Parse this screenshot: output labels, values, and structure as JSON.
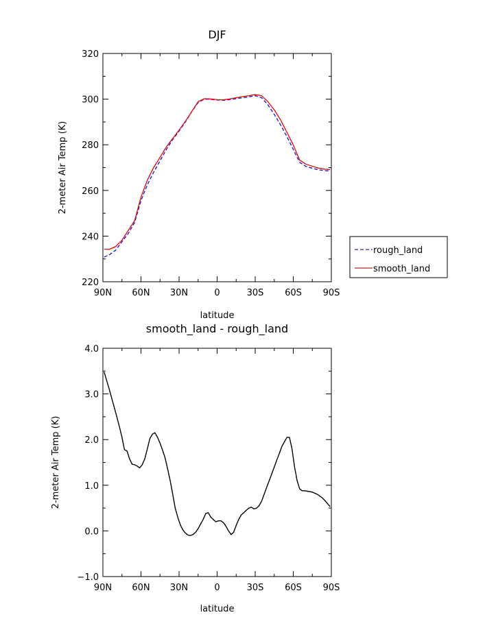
{
  "chart_data": [
    {
      "type": "line",
      "title": "DJF",
      "xlabel": "latitude",
      "ylabel": "2-meter Air Temp (K)",
      "xlim": [
        90,
        -90
      ],
      "ylim": [
        220,
        320
      ],
      "x_ticks": [
        {
          "value": 90,
          "label": "90N"
        },
        {
          "value": 60,
          "label": "60N"
        },
        {
          "value": 30,
          "label": "30N"
        },
        {
          "value": 0,
          "label": "0"
        },
        {
          "value": -30,
          "label": "30S"
        },
        {
          "value": -60,
          "label": "60S"
        },
        {
          "value": -90,
          "label": "90S"
        }
      ],
      "y_ticks": [
        {
          "value": 220,
          "label": "220"
        },
        {
          "value": 240,
          "label": "240"
        },
        {
          "value": 260,
          "label": "260"
        },
        {
          "value": 280,
          "label": "280"
        },
        {
          "value": 300,
          "label": "300"
        },
        {
          "value": 320,
          "label": "320"
        }
      ],
      "legend_position": "right",
      "series": [
        {
          "name": "rough_land",
          "color": "#1f1fcc",
          "dash": "dashed",
          "x": [
            89,
            85,
            80,
            75,
            70,
            65,
            60,
            55,
            50,
            45,
            40,
            35,
            30,
            25,
            20,
            15,
            10,
            5,
            0,
            -5,
            -10,
            -15,
            -20,
            -25,
            -30,
            -35,
            -40,
            -45,
            -50,
            -55,
            -60,
            -65,
            -70,
            -75,
            -80,
            -85,
            -89
          ],
          "y": [
            230.8,
            231.8,
            233.8,
            237.5,
            241.2,
            246.0,
            255.5,
            262.5,
            268.0,
            273.0,
            278.0,
            282.3,
            286.0,
            290.0,
            294.5,
            298.5,
            300.0,
            299.9,
            299.6,
            299.5,
            299.8,
            300.2,
            300.6,
            301.0,
            301.5,
            300.6,
            297.5,
            293.3,
            288.7,
            283.5,
            278.0,
            272.3,
            270.5,
            269.7,
            269.0,
            268.7,
            268.5
          ]
        },
        {
          "name": "smooth_land",
          "color": "#e01414",
          "dash": "solid",
          "x": [
            89,
            85,
            80,
            75,
            70,
            65,
            60,
            55,
            50,
            45,
            40,
            35,
            30,
            25,
            20,
            15,
            10,
            5,
            0,
            -5,
            -10,
            -15,
            -20,
            -25,
            -30,
            -35,
            -40,
            -45,
            -50,
            -55,
            -60,
            -65,
            -70,
            -75,
            -80,
            -85,
            -89
          ],
          "y": [
            234.3,
            234.2,
            235.4,
            238.2,
            242.5,
            246.8,
            257.1,
            264.5,
            270.1,
            274.5,
            279.1,
            282.8,
            286.4,
            290.3,
            294.6,
            298.9,
            300.2,
            300.1,
            299.8,
            299.7,
            300.1,
            300.6,
            301.1,
            301.5,
            302.0,
            301.5,
            298.9,
            295.3,
            290.9,
            285.4,
            279.9,
            273.3,
            271.5,
            270.6,
            269.8,
            269.3,
            269.1
          ]
        }
      ]
    },
    {
      "type": "line",
      "title": "smooth_land - rough_land",
      "xlabel": "latitude",
      "ylabel": "2-meter Air Temp (K)",
      "xlim": [
        90,
        -90
      ],
      "ylim": [
        -1.0,
        4.0
      ],
      "x_ticks": [
        {
          "value": 90,
          "label": "90N"
        },
        {
          "value": 60,
          "label": "60N"
        },
        {
          "value": 30,
          "label": "30N"
        },
        {
          "value": 0,
          "label": "0"
        },
        {
          "value": -30,
          "label": "30S"
        },
        {
          "value": -60,
          "label": "60S"
        },
        {
          "value": -90,
          "label": "90S"
        }
      ],
      "y_ticks": [
        {
          "value": -1.0,
          "label": "-1.0"
        },
        {
          "value": 0.0,
          "label": "0.0"
        },
        {
          "value": 1.0,
          "label": "1.0"
        },
        {
          "value": 2.0,
          "label": "2.0"
        },
        {
          "value": 3.0,
          "label": "3.0"
        },
        {
          "value": 4.0,
          "label": "4.0"
        }
      ],
      "series": [
        {
          "color": "#000000",
          "dash": "solid",
          "x": [
            89,
            85,
            82,
            79,
            77,
            75,
            73,
            71,
            69,
            67,
            65,
            63,
            61,
            59,
            57,
            55,
            53,
            51,
            49,
            47,
            45,
            43,
            41,
            39,
            37,
            35,
            33,
            31,
            29,
            27,
            25,
            23,
            21,
            19,
            17,
            15,
            13,
            11,
            9,
            7,
            5,
            3,
            1,
            -1,
            -3,
            -5,
            -7,
            -9,
            -11,
            -13,
            -15,
            -17,
            -19,
            -21,
            -23,
            -25,
            -27,
            -29,
            -31,
            -33,
            -35,
            -37,
            -39,
            -41,
            -43,
            -45,
            -47,
            -49,
            -51,
            -53,
            -55,
            -57,
            -59,
            -61,
            -63,
            -65,
            -67,
            -69,
            -71,
            -75,
            -79,
            -83,
            -86,
            -89
          ],
          "y": [
            3.48,
            3.1,
            2.8,
            2.5,
            2.28,
            2.05,
            1.78,
            1.75,
            1.58,
            1.46,
            1.45,
            1.42,
            1.38,
            1.45,
            1.58,
            1.8,
            2.02,
            2.12,
            2.15,
            2.05,
            1.92,
            1.77,
            1.6,
            1.36,
            1.1,
            0.8,
            0.5,
            0.3,
            0.13,
            0.02,
            -0.05,
            -0.09,
            -0.1,
            -0.08,
            -0.03,
            0.05,
            0.15,
            0.25,
            0.38,
            0.4,
            0.3,
            0.25,
            0.2,
            0.22,
            0.22,
            0.18,
            0.1,
            0.0,
            -0.08,
            -0.03,
            0.12,
            0.25,
            0.35,
            0.4,
            0.45,
            0.5,
            0.52,
            0.48,
            0.5,
            0.55,
            0.65,
            0.8,
            0.95,
            1.1,
            1.25,
            1.4,
            1.55,
            1.7,
            1.85,
            1.95,
            2.05,
            2.05,
            1.8,
            1.4,
            1.1,
            0.92,
            0.88,
            0.88,
            0.87,
            0.85,
            0.8,
            0.72,
            0.63,
            0.53
          ]
        }
      ]
    }
  ]
}
